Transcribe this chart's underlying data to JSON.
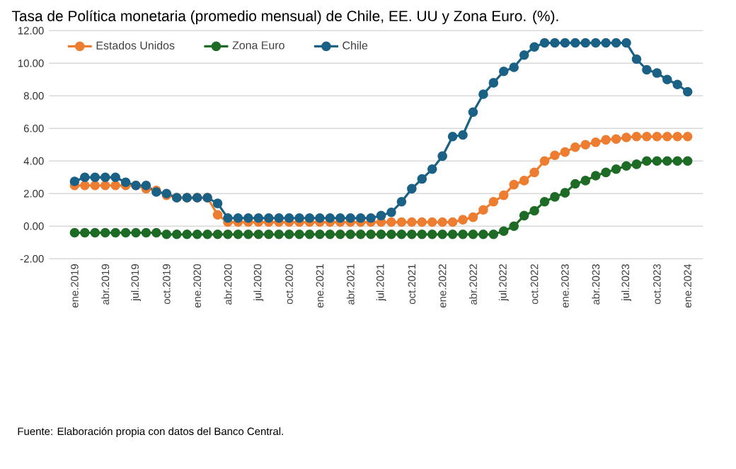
{
  "chart_data": {
    "type": "line",
    "title": "Tasa de Política monetaria (promedio mensual) de Chile, EE. UU y Zona Euro. (%).",
    "categories": [
      "ene.2019",
      null,
      null,
      "abr.2019",
      null,
      null,
      "jul.2019",
      null,
      null,
      "oct.2019",
      null,
      null,
      "ene.2020",
      null,
      null,
      "abr.2020",
      null,
      null,
      "jul.2020",
      null,
      null,
      "oct.2020",
      null,
      null,
      "ene.2021",
      null,
      null,
      "abr.2021",
      null,
      null,
      "jul.2021",
      null,
      null,
      "oct.2021",
      null,
      null,
      "ene.2022",
      null,
      null,
      "abr.2022",
      null,
      null,
      "jul.2022",
      null,
      null,
      "oct.2022",
      null,
      null,
      "ene.2023",
      null,
      null,
      "abr.2023",
      null,
      null,
      "jul.2023",
      null,
      null,
      "oct.2023",
      null,
      null,
      "ene.2024"
    ],
    "series": [
      {
        "name": "Estados Unidos",
        "color": "#ed7d31",
        "values": [
          2.5,
          2.5,
          2.5,
          2.5,
          2.5,
          2.5,
          2.5,
          2.3,
          2.2,
          1.9,
          1.75,
          1.75,
          1.75,
          1.75,
          0.7,
          0.25,
          0.25,
          0.25,
          0.25,
          0.25,
          0.25,
          0.25,
          0.25,
          0.25,
          0.25,
          0.25,
          0.25,
          0.25,
          0.25,
          0.25,
          0.25,
          0.25,
          0.25,
          0.25,
          0.25,
          0.25,
          0.25,
          0.25,
          0.4,
          0.55,
          1.0,
          1.5,
          1.9,
          2.55,
          2.8,
          3.3,
          4.0,
          4.35,
          4.55,
          4.85,
          5.0,
          5.15,
          5.3,
          5.35,
          5.45,
          5.5,
          5.5,
          5.5,
          5.5,
          5.5,
          5.5
        ]
      },
      {
        "name": "Zona Euro",
        "color": "#1e6b26",
        "values": [
          -0.4,
          -0.4,
          -0.4,
          -0.4,
          -0.4,
          -0.4,
          -0.4,
          -0.4,
          -0.4,
          -0.5,
          -0.5,
          -0.5,
          -0.5,
          -0.5,
          -0.5,
          -0.5,
          -0.5,
          -0.5,
          -0.5,
          -0.5,
          -0.5,
          -0.5,
          -0.5,
          -0.5,
          -0.5,
          -0.5,
          -0.5,
          -0.5,
          -0.5,
          -0.5,
          -0.5,
          -0.5,
          -0.5,
          -0.5,
          -0.5,
          -0.5,
          -0.5,
          -0.5,
          -0.5,
          -0.5,
          -0.5,
          -0.5,
          -0.3,
          0.0,
          0.65,
          0.95,
          1.5,
          1.8,
          2.05,
          2.6,
          2.8,
          3.1,
          3.3,
          3.5,
          3.7,
          3.8,
          4.0,
          4.0,
          4.0,
          4.0,
          4.0
        ]
      },
      {
        "name": "Chile",
        "color": "#1b6186",
        "values": [
          2.75,
          3.0,
          3.0,
          3.0,
          3.0,
          2.7,
          2.5,
          2.5,
          2.1,
          2.0,
          1.75,
          1.75,
          1.75,
          1.75,
          1.4,
          0.5,
          0.5,
          0.5,
          0.5,
          0.5,
          0.5,
          0.5,
          0.5,
          0.5,
          0.5,
          0.5,
          0.5,
          0.5,
          0.5,
          0.5,
          0.65,
          0.85,
          1.5,
          2.3,
          2.9,
          3.5,
          4.3,
          5.5,
          5.6,
          7.0,
          8.1,
          8.8,
          9.5,
          9.75,
          10.5,
          11.0,
          11.25,
          11.25,
          11.25,
          11.25,
          11.25,
          11.25,
          11.25,
          11.25,
          11.25,
          10.25,
          9.6,
          9.4,
          9.0,
          8.7,
          8.25
        ]
      }
    ],
    "ylim": [
      -2,
      12
    ],
    "yticks": [
      {
        "value": -2,
        "label": "-2.00"
      },
      {
        "value": 0,
        "label": "0.00"
      },
      {
        "value": 2,
        "label": "2.00"
      },
      {
        "value": 4,
        "label": "4.00"
      },
      {
        "value": 6,
        "label": "6.00"
      },
      {
        "value": 8,
        "label": "8.00"
      },
      {
        "value": 10,
        "label": "10.00"
      },
      {
        "value": 12,
        "label": "12.00"
      }
    ],
    "grid": "y",
    "legend": "top left",
    "marker": "circle",
    "line_style": "solid",
    "annotations": [
      "Fuente: Elaboración propia con datos del Banco Central."
    ]
  }
}
